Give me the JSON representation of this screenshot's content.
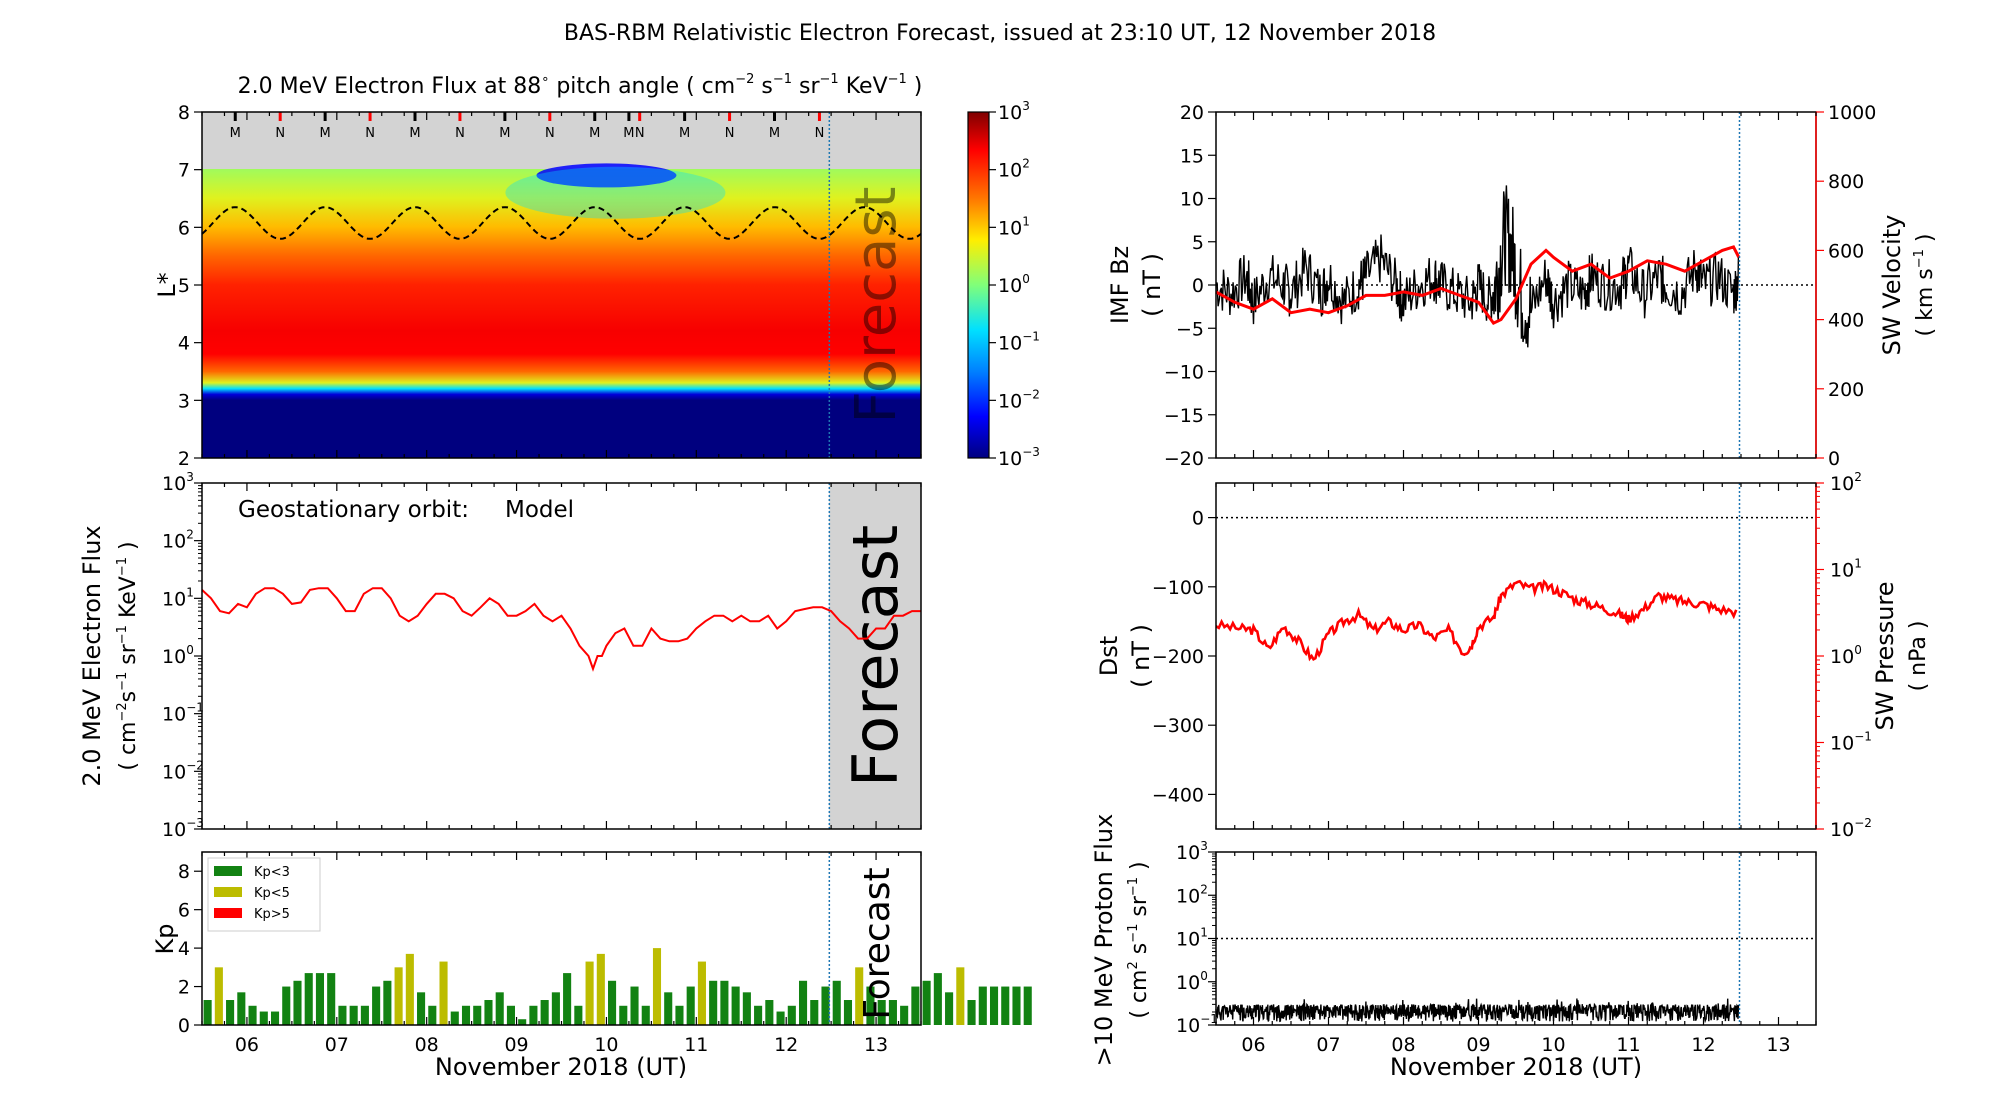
{
  "figure": {
    "title": "BAS-RBM Relativistic Electron Forecast, issued at 23:10 UT, 12 November 2018",
    "xlabel": "November 2018 (UT)",
    "day_ticks": [
      "06",
      "07",
      "08",
      "09",
      "10",
      "11",
      "12",
      "13"
    ],
    "forecast_label": "Forecast"
  },
  "colors": {
    "model": "#ff0000",
    "bz": "#000000",
    "sw": "#ff0000",
    "kp_low": "#128212",
    "kp_mid": "#bcbc00",
    "kp_high": "#ff0000",
    "forecast_shade": "#d3d3d3",
    "issue_line": "#1f77b4"
  },
  "chart_data": [
    {
      "id": "lstar",
      "type": "heatmap",
      "title": "2.0 MeV Electron Flux at 88$^\\circ$ pitch angle ( cm$^{-2}$ s$^{-1}$ sr$^{-1}$ KeV$^{-1}$ )",
      "title_parts": [
        "2.0 MeV Electron Flux at 88",
        "∘",
        " pitch angle ( cm",
        "−2",
        " s",
        "−1",
        " sr",
        "−1",
        " KeV",
        "−1",
        " )"
      ],
      "ylabel": "L*",
      "yticks": [
        "2",
        "3",
        "4",
        "5",
        "6",
        "7",
        "8"
      ],
      "ylim": [
        2,
        8
      ],
      "xlim_days": [
        5.5,
        13.5
      ],
      "forecast_start_day": 12.48,
      "colorbar": {
        "scale": "log",
        "range": [
          0.001,
          1000
        ],
        "ticks": [
          "10",
          "10",
          "10",
          "10",
          "10",
          "10",
          "10"
        ],
        "exps": [
          "−3",
          "−2",
          "−1",
          "0",
          "1",
          "2",
          "3"
        ]
      },
      "profile_L": [
        2,
        3.0,
        3.1,
        3.2,
        3.3,
        3.5,
        3.8,
        4.2,
        5.0,
        5.5,
        6.0,
        6.5,
        7.0
      ],
      "profile_log_flux": [
        -3,
        -3,
        -2.5,
        -0.8,
        0.6,
        1.6,
        2.2,
        2.25,
        2.0,
        1.6,
        1.1,
        0.6,
        0.2
      ],
      "orbit_markers": [
        {
          "day": 5.87,
          "label": "M"
        },
        {
          "day": 6.37,
          "label": "N"
        },
        {
          "day": 6.87,
          "label": "M"
        },
        {
          "day": 7.37,
          "label": "N"
        },
        {
          "day": 7.87,
          "label": "M"
        },
        {
          "day": 8.37,
          "label": "N"
        },
        {
          "day": 8.87,
          "label": "M"
        },
        {
          "day": 9.37,
          "label": "N"
        },
        {
          "day": 9.87,
          "label": "M"
        },
        {
          "day": 10.25,
          "label": "M"
        },
        {
          "day": 10.37,
          "label": "N"
        },
        {
          "day": 10.87,
          "label": "M"
        },
        {
          "day": 11.37,
          "label": "N"
        },
        {
          "day": 11.87,
          "label": "M"
        },
        {
          "day": 12.37,
          "label": "N"
        }
      ],
      "geo_L_range": [
        5.8,
        6.35
      ]
    },
    {
      "id": "geo",
      "type": "line",
      "annotation": "Geostationary orbit:",
      "annotation_series": "Model",
      "ylabel": "2.0 MeV Electron Flux",
      "ylabel2": "( cm$^{-2}$s$^{-1}$ sr$^{-1}$ KeV$^{-1}$ )",
      "ylabel2_parts": [
        "( cm",
        "−2",
        "s",
        "−1",
        " sr",
        "−1",
        " KeV",
        "−1",
        " )"
      ],
      "yscale": "log",
      "ylim": [
        0.001,
        1000
      ],
      "yticks": [
        "10",
        "10",
        "10",
        "10",
        "10",
        "10",
        "10"
      ],
      "ytick_exps": [
        "−3",
        "−2",
        "−1",
        "0",
        "1",
        "2",
        "3"
      ],
      "series": [
        {
          "name": "Model",
          "x": [
            5.5,
            5.6,
            5.7,
            5.8,
            5.9,
            6.0,
            6.1,
            6.2,
            6.3,
            6.4,
            6.5,
            6.6,
            6.7,
            6.8,
            6.9,
            7.0,
            7.1,
            7.2,
            7.3,
            7.4,
            7.5,
            7.6,
            7.7,
            7.8,
            7.9,
            8.0,
            8.1,
            8.2,
            8.3,
            8.4,
            8.5,
            8.6,
            8.7,
            8.8,
            8.9,
            9.0,
            9.1,
            9.2,
            9.3,
            9.4,
            9.5,
            9.6,
            9.7,
            9.8,
            9.85,
            9.9,
            9.95,
            10.0,
            10.1,
            10.2,
            10.3,
            10.4,
            10.5,
            10.6,
            10.7,
            10.8,
            10.9,
            11.0,
            11.1,
            11.2,
            11.3,
            11.4,
            11.5,
            11.6,
            11.7,
            11.8,
            11.9,
            12.0,
            12.1,
            12.2,
            12.3,
            12.4,
            12.5,
            12.6,
            12.7,
            12.8,
            12.9,
            13.0,
            13.1,
            13.2,
            13.3,
            13.4,
            13.5
          ],
          "y": [
            14,
            10,
            6,
            5.5,
            8,
            7,
            12,
            15,
            15,
            12,
            8,
            8.5,
            14,
            15,
            15,
            10,
            6,
            6,
            12,
            15,
            15,
            10,
            5,
            4,
            5,
            8,
            12,
            12,
            10,
            6,
            5,
            7,
            10,
            8,
            5,
            5,
            6,
            8,
            5,
            4,
            5,
            3,
            1.5,
            1,
            0.6,
            1,
            1,
            1.5,
            2.5,
            3,
            1.5,
            1.5,
            3,
            2,
            1.8,
            1.8,
            2,
            3,
            4,
            5,
            5,
            4,
            5,
            4,
            4,
            5,
            3,
            4,
            6,
            6.5,
            7,
            7,
            6,
            4,
            3,
            2,
            2,
            3,
            3,
            5,
            5,
            6,
            6
          ]
        }
      ]
    },
    {
      "id": "kp",
      "type": "bar",
      "ylabel": "Kp",
      "ylim": [
        0,
        9
      ],
      "yticks": [
        "0",
        "2",
        "4",
        "6",
        "8"
      ],
      "legend": [
        "Kp<3",
        "Kp<5",
        "Kp>5"
      ],
      "legend_position": "upper-left",
      "bar_start_day": 5.5625,
      "bar_step_days": 0.125,
      "values": [
        1.3,
        3.0,
        1.3,
        1.7,
        1.0,
        0.7,
        0.7,
        2.0,
        2.3,
        2.7,
        2.7,
        2.7,
        1.0,
        1.0,
        1.0,
        2.0,
        2.3,
        3.0,
        3.7,
        1.7,
        1.0,
        3.3,
        0.7,
        1.0,
        1.0,
        1.3,
        1.7,
        1.0,
        0.3,
        1.0,
        1.3,
        1.7,
        2.7,
        1.0,
        3.3,
        3.7,
        2.3,
        1.0,
        2.0,
        1.0,
        4.0,
        1.7,
        1.0,
        2.0,
        3.3,
        2.3,
        2.3,
        2.0,
        1.7,
        1.0,
        1.3,
        0.7,
        1.0,
        2.3,
        1.3,
        2.0,
        2.3,
        1.3,
        3.0,
        2.0,
        1.3,
        1.3,
        1.0,
        2.0,
        2.3,
        2.7,
        1.7,
        3.0,
        1.3,
        2.0,
        2.0,
        2.0,
        2.0,
        2.0
      ]
    },
    {
      "id": "imf",
      "type": "line",
      "ylabel": "IMF Bz",
      "ylabel_unit": "( nT )",
      "ylim": [
        -20,
        20
      ],
      "yticks": [
        "−20",
        "−15",
        "−10",
        "−5",
        "0",
        "5",
        "10",
        "15",
        "20"
      ],
      "y2label": "SW Velocity",
      "y2label_unit": "( km s$^{-1}$ )",
      "y2label_unit_parts": [
        "( km s",
        "−1",
        " )"
      ],
      "y2lim": [
        0,
        1000
      ],
      "y2ticks": [
        "0",
        "200",
        "400",
        "600",
        "800",
        "1000"
      ],
      "series": [
        {
          "name": "IMF Bz",
          "x": [
            5.5,
            5.7,
            5.9,
            6.0,
            6.2,
            6.4,
            6.5,
            6.7,
            6.9,
            7.0,
            7.2,
            7.4,
            7.5,
            7.7,
            7.9,
            8.0,
            8.2,
            8.4,
            8.5,
            8.7,
            8.9,
            9.0,
            9.15,
            9.25,
            9.35,
            9.45,
            9.55,
            9.7,
            9.9,
            10.0,
            10.2,
            10.4,
            10.5,
            10.7,
            10.9,
            11.0,
            11.2,
            11.4,
            11.5,
            11.7,
            11.9,
            12.0,
            12.2,
            12.4,
            12.47
          ],
          "y": [
            0,
            -1,
            1,
            -2,
            1,
            0,
            -1,
            2,
            -1,
            1,
            -2,
            0,
            1,
            3,
            0,
            -2,
            0,
            1,
            0,
            -1,
            -2,
            0,
            -2,
            1,
            6,
            4,
            -1,
            -3,
            1,
            -2,
            0,
            -1,
            1,
            0,
            0,
            2,
            -1,
            1,
            0,
            -1,
            2,
            0,
            1,
            -1,
            1
          ]
        },
        {
          "name": "SW Velocity",
          "x": [
            5.5,
            5.75,
            6.0,
            6.25,
            6.5,
            6.75,
            7.0,
            7.25,
            7.5,
            7.75,
            8.0,
            8.25,
            8.5,
            8.75,
            9.0,
            9.2,
            9.3,
            9.5,
            9.7,
            9.9,
            10.0,
            10.25,
            10.5,
            10.75,
            11.0,
            11.25,
            11.5,
            11.75,
            12.0,
            12.25,
            12.4,
            12.47
          ],
          "y": [
            480,
            450,
            430,
            460,
            420,
            430,
            420,
            440,
            470,
            470,
            480,
            470,
            490,
            470,
            450,
            390,
            400,
            460,
            560,
            600,
            580,
            540,
            560,
            520,
            540,
            570,
            560,
            540,
            570,
            600,
            610,
            580
          ]
        }
      ]
    },
    {
      "id": "dst",
      "type": "line",
      "ylabel": "Dst",
      "ylabel_unit": "( nT )",
      "ylim": [
        -450,
        50
      ],
      "yticks": [
        "−400",
        "−300",
        "−200",
        "−100",
        "0"
      ],
      "y2label": "SW Pressure",
      "y2label_unit": "( nPa )",
      "y2scale": "log",
      "y2lim": [
        0.01,
        100
      ],
      "y2ticks": [
        "10",
        "10",
        "10",
        "10",
        "10"
      ],
      "y2tick_exps": [
        "−2",
        "−1",
        "0",
        "1",
        "2"
      ],
      "series": [
        {
          "name": "SW Pressure",
          "x": [
            5.5,
            5.8,
            6.0,
            6.2,
            6.4,
            6.6,
            6.8,
            7.0,
            7.2,
            7.4,
            7.6,
            7.8,
            8.0,
            8.2,
            8.4,
            8.6,
            8.8,
            8.9,
            9.0,
            9.2,
            9.3,
            9.5,
            9.7,
            9.9,
            10.1,
            10.3,
            10.5,
            10.7,
            10.9,
            11.0,
            11.2,
            11.4,
            11.6,
            11.8,
            12.0,
            12.2,
            12.47
          ],
          "y": [
            2.3,
            2.1,
            2.0,
            1.2,
            2.2,
            1.5,
            0.9,
            1.8,
            2.5,
            3.0,
            2.0,
            2.5,
            2.0,
            2.3,
            1.6,
            2.0,
            1.1,
            1.3,
            2.2,
            2.8,
            5.0,
            7.0,
            6.0,
            6.5,
            5.5,
            4.5,
            4.0,
            3.5,
            3.0,
            2.7,
            3.5,
            5.0,
            4.5,
            4.2,
            4.0,
            3.5,
            3.2
          ]
        }
      ]
    },
    {
      "id": "proton",
      "type": "line",
      "ylabel": ">10 MeV Proton Flux",
      "ylabel_unit": "( cm$^{2}$ s$^{-1}$ sr$^{-1}$ )",
      "ylabel_unit_parts": [
        "( cm",
        "2",
        " s",
        "−1",
        " sr",
        "−1",
        " )"
      ],
      "yscale": "log",
      "ylim": [
        0.1,
        1000
      ],
      "yticks": [
        "10",
        "10",
        "10",
        "10",
        "10"
      ],
      "ytick_exps": [
        "−1",
        "0",
        "1",
        "2",
        "3"
      ],
      "threshold": 10,
      "series": [
        {
          "name": ">10 MeV Proton Flux",
          "x": [
            5.5,
            12.47
          ],
          "y": [
            0.2,
            0.2
          ]
        }
      ]
    }
  ]
}
